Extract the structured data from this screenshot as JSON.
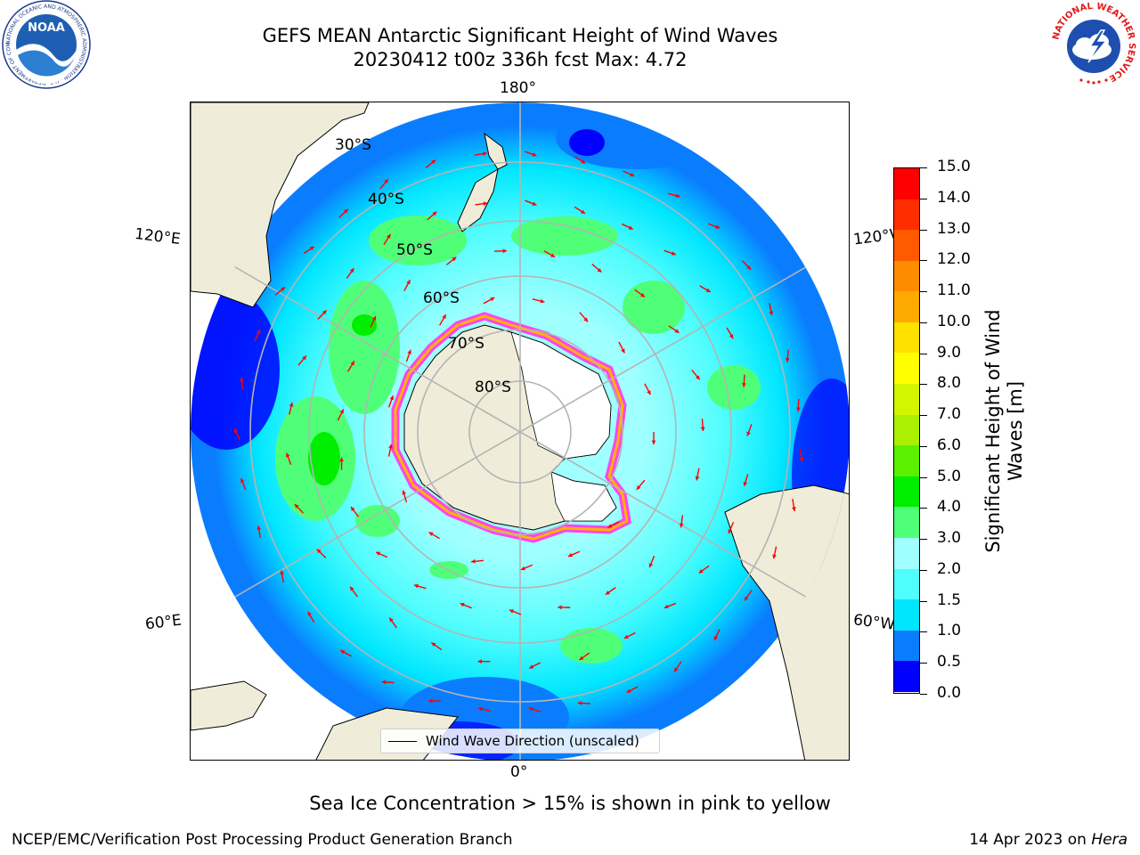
{
  "header": {
    "title_line1": "GEFS MEAN Antarctic Significant Height of Wind Waves",
    "title_line2": "20230412 t00z 336h fcst   Max: 4.72"
  },
  "map": {
    "projection": "south-polar-stereographic",
    "longitude_labels": {
      "top": "180°",
      "bottom": "0°",
      "upper_left": "120°E",
      "upper_right": "120°W",
      "lower_left": "60°E",
      "lower_right": "60°W"
    },
    "latitude_labels": [
      "30°S",
      "40°S",
      "50°S",
      "60°S",
      "70°S",
      "80°S"
    ],
    "legend": {
      "line_label": "Wind Wave Direction (unscaled)",
      "line_color": "#000000"
    },
    "arrow_color": "#ff0000",
    "land_color": "#efedda",
    "ice_edge_colors": [
      "#ff44ee",
      "#ffb300",
      "#ffff66"
    ]
  },
  "colorbar": {
    "title": "Significant Height of Wind Waves [m]",
    "title_line1": "Significant Height of Wind",
    "title_line2": "Waves [m]",
    "tick_labels": [
      "0.0",
      "0.5",
      "1.0",
      "1.5",
      "2.0",
      "3.0",
      "4.0",
      "5.0",
      "6.0",
      "7.0",
      "8.0",
      "9.0",
      "10.0",
      "11.0",
      "12.0",
      "13.0",
      "14.0",
      "15.0"
    ],
    "colors": [
      "#0000ff",
      "#0a7dff",
      "#00e6ff",
      "#50fdfd",
      "#a0ffff",
      "#50ff78",
      "#00ee00",
      "#5af000",
      "#aaf000",
      "#d2f500",
      "#ffff00",
      "#ffe100",
      "#ffaa00",
      "#ff8c00",
      "#ff5a00",
      "#ff2d00",
      "#ff0000"
    ]
  },
  "note": "Sea Ice Concentration > 15% is shown in pink to yellow",
  "footer": {
    "left": "NCEP/EMC/Verification Post Processing Product Generation Branch",
    "right_date": "14 Apr 2023 on",
    "right_host": "Hera"
  },
  "logos": {
    "noaa_text": "NOAA",
    "noaa_ring_text": "NATIONAL OCEANIC AND ATMOSPHERIC ADMINISTRATION · U.S. DEPARTMENT OF COMMERCE",
    "nws_ring_text": "NATIONAL WEATHER SERVICE"
  }
}
